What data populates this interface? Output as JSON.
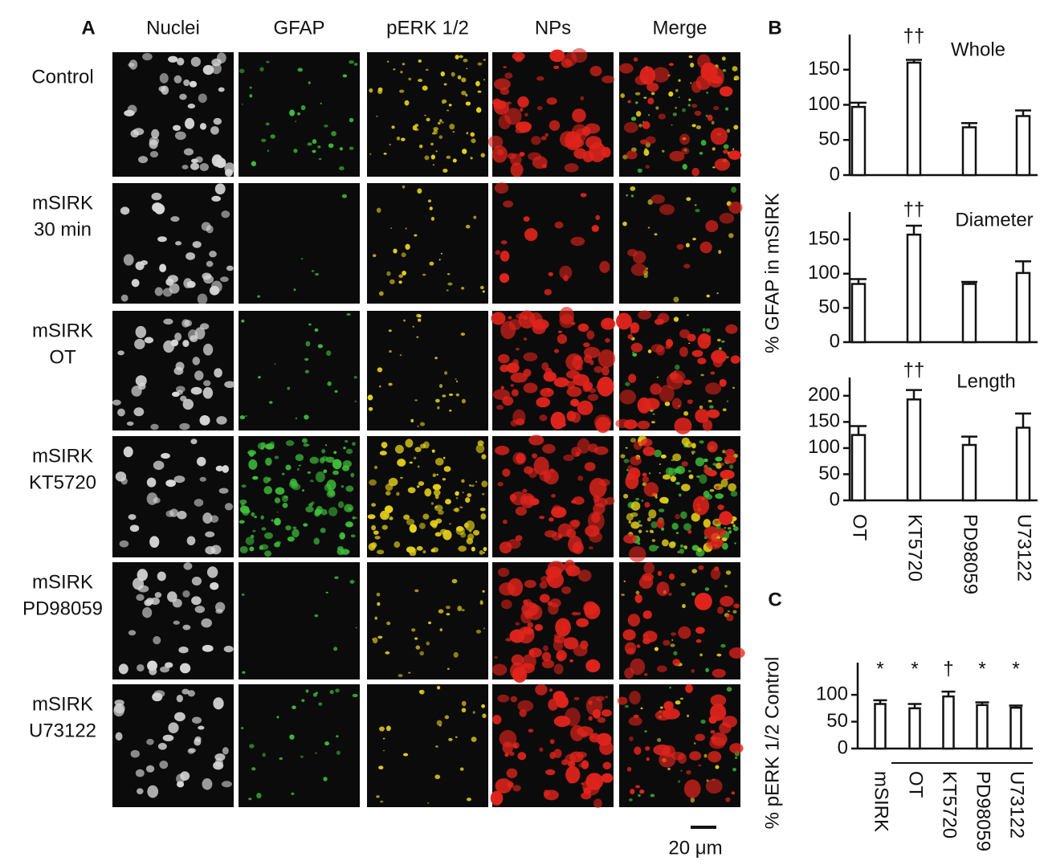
{
  "panel_a": {
    "label": "A",
    "columns": [
      "Nuclei",
      "GFAP",
      "pERK 1/2",
      "NPs",
      "Merge"
    ],
    "rows": [
      [
        "Control"
      ],
      [
        "mSIRK",
        "30 min"
      ],
      [
        "mSIRK",
        "OT"
      ],
      [
        "mSIRK",
        "KT5720"
      ],
      [
        "mSIRK",
        "PD98059"
      ],
      [
        "mSIRK",
        "U73122"
      ]
    ],
    "scale_bar": "20 μm"
  },
  "chart_data": [
    {
      "type": "bar",
      "panel_label": "B",
      "title": "Whole",
      "values": [
        97,
        160,
        68,
        84
      ],
      "errors": [
        6,
        4,
        6,
        8
      ],
      "annotations": [
        null,
        "††",
        null,
        null
      ],
      "ylim": [
        0,
        200
      ],
      "yticks": [
        0,
        50,
        100,
        150
      ],
      "color": "#ffffff"
    },
    {
      "type": "bar",
      "title": "Diameter",
      "ylabel": "% GFAP in mSIRK",
      "values": [
        85,
        157,
        85,
        101
      ],
      "errors": [
        7,
        13,
        3,
        17
      ],
      "annotations": [
        null,
        "††",
        null,
        null
      ],
      "ylim": [
        0,
        190
      ],
      "yticks": [
        0,
        50,
        100,
        150
      ],
      "color": "#ffffff"
    },
    {
      "type": "bar",
      "title": "Length",
      "categories": [
        "OT",
        "KT5720",
        "PD98059",
        "U73122"
      ],
      "values": [
        125,
        193,
        106,
        139
      ],
      "errors": [
        17,
        18,
        16,
        27
      ],
      "annotations": [
        null,
        "††",
        null,
        null
      ],
      "ylim": [
        0,
        235
      ],
      "yticks": [
        0,
        50,
        100,
        150,
        200
      ],
      "color": "#ffffff"
    },
    {
      "type": "bar",
      "panel_label": "C",
      "ylabel": "% pERK 1/2 Control",
      "categories": [
        "mSIRK",
        "OT",
        "KT5720",
        "PD98059",
        "U73122"
      ],
      "values": [
        83,
        75,
        97,
        81,
        76
      ],
      "errors": [
        7,
        8,
        9,
        5,
        4
      ],
      "annotations": [
        "*",
        "*",
        "†",
        "*",
        "*"
      ],
      "ylim": [
        0,
        160
      ],
      "yticks": [
        0,
        50,
        100
      ],
      "color": "#ffffff"
    }
  ]
}
